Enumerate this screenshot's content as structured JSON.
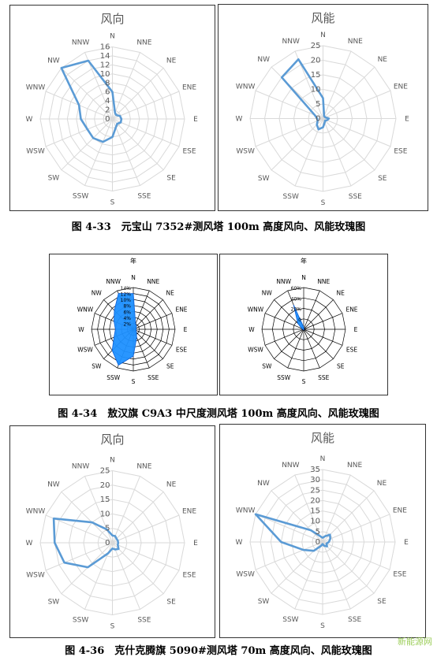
{
  "figures": [
    {
      "caption": "图 4-33　元宝山 7352#测风塔 100m 高度风向、风能玫瑰图",
      "charts": [
        {
          "kind": "direction",
          "title": "风向"
        },
        {
          "kind": "energy",
          "title": "风能"
        }
      ]
    },
    {
      "caption": "图 4-34　敖汉旗 C9A3 中尺度测风塔 100m 高度风向、风能玫瑰图",
      "charts": [
        {
          "kind": "direction",
          "title": "年"
        },
        {
          "kind": "energy",
          "title": "年"
        }
      ]
    },
    {
      "caption": "图 4-36　克什克腾旗 5090#测风塔 70m 高度风向、风能玫瑰图",
      "charts": [
        {
          "kind": "direction",
          "title": "风向"
        },
        {
          "kind": "energy",
          "title": "风能"
        }
      ]
    }
  ],
  "watermark": "新能源网",
  "colors": {
    "series": "#5b9bd5",
    "fill": "#1e90ff",
    "grid": "#d9d9d9",
    "black_grid": "#000000"
  },
  "chart_data": [
    {
      "type": "radar",
      "title": "风向",
      "categories": [
        "N",
        "NNE",
        "NE",
        "ENE",
        "E",
        "ESE",
        "SE",
        "SSE",
        "S",
        "SSW",
        "SW",
        "WSW",
        "W",
        "WNW",
        "NW",
        "NNW"
      ],
      "ticks": [
        "0",
        "2",
        "4",
        "6",
        "8",
        "10",
        "12",
        "14",
        "16"
      ],
      "rlim": [
        0,
        16
      ],
      "series": [
        {
          "values": [
            6,
            1.5,
            1.2,
            1.8,
            2,
            2,
            1.5,
            2,
            4,
            5.5,
            6,
            6,
            7,
            8,
            16,
            14
          ]
        }
      ]
    },
    {
      "type": "radar",
      "title": "风能",
      "categories": [
        "N",
        "NNE",
        "NE",
        "ENE",
        "E",
        "ESE",
        "SE",
        "SSE",
        "S",
        "SSW",
        "SW",
        "WSW",
        "W",
        "WNW",
        "NW",
        "NNW"
      ],
      "ticks": [
        "0",
        "5",
        "10",
        "15",
        "20",
        "25"
      ],
      "rlim": [
        0,
        25
      ],
      "series": [
        {
          "values": [
            7,
            1,
            0.8,
            1,
            2,
            1.5,
            1,
            1.5,
            3,
            4,
            3,
            2,
            2,
            3,
            20,
            22
          ]
        }
      ]
    },
    {
      "type": "radar",
      "title": "年",
      "categories": [
        "N",
        "NNE",
        "NE",
        "ENE",
        "E",
        "ESE",
        "SE",
        "SSE",
        "S",
        "SSW",
        "SW",
        "WSW",
        "W",
        "WNW",
        "NW",
        "NNW"
      ],
      "ticks": [
        "2%",
        "4%",
        "6%",
        "8%",
        "10%",
        "12%",
        "14%"
      ],
      "rlim": [
        0,
        14
      ],
      "filled": true,
      "series": [
        {
          "values": [
            12,
            2,
            1.5,
            1,
            1,
            1,
            1.5,
            3,
            9,
            13,
            10,
            7,
            6,
            7,
            9,
            13
          ]
        }
      ]
    },
    {
      "type": "radar",
      "title": "年",
      "categories": [
        "N",
        "NNE",
        "NE",
        "ENE",
        "E",
        "ESE",
        "SE",
        "SSE",
        "S",
        "SSW",
        "SW",
        "WSW",
        "W",
        "WNW",
        "NW",
        "NNW"
      ],
      "ticks": [
        "0",
        "20%",
        "40%",
        "60%"
      ],
      "rlim": [
        0,
        60
      ],
      "filled": true,
      "series": [
        {
          "values": [
            3,
            1,
            0.5,
            0.5,
            0.5,
            0.5,
            0.5,
            0.5,
            1,
            1,
            1,
            1,
            1,
            3,
            12,
            38
          ]
        }
      ]
    },
    {
      "type": "radar",
      "title": "风向",
      "categories": [
        "N",
        "NNE",
        "NE",
        "ENE",
        "E",
        "ESE",
        "SE",
        "SSE",
        "S",
        "SSW",
        "SW",
        "WSW",
        "W",
        "WNW",
        "NW",
        "NNW"
      ],
      "ticks": [
        "0",
        "5",
        "10",
        "15",
        "20",
        "25"
      ],
      "rlim": [
        0,
        25
      ],
      "series": [
        {
          "values": [
            2.5,
            2.5,
            2,
            2,
            2,
            2,
            3,
            2.5,
            2,
            4,
            12,
            18,
            20,
            22,
            10,
            5
          ]
        }
      ]
    },
    {
      "type": "radar",
      "title": "风能",
      "categories": [
        "N",
        "NNE",
        "NE",
        "ENE",
        "E",
        "ESE",
        "SE",
        "SSE",
        "S",
        "SSW",
        "SW",
        "WSW",
        "W",
        "WNW",
        "NW",
        "NNW"
      ],
      "ticks": [
        "0",
        "5",
        "10",
        "15",
        "20",
        "25",
        "30",
        "35"
      ],
      "rlim": [
        0,
        35
      ],
      "series": [
        {
          "values": [
            2,
            3,
            5,
            4,
            3,
            2,
            3,
            2,
            1,
            2,
            6,
            10,
            20,
            35,
            8,
            3
          ]
        }
      ]
    }
  ]
}
